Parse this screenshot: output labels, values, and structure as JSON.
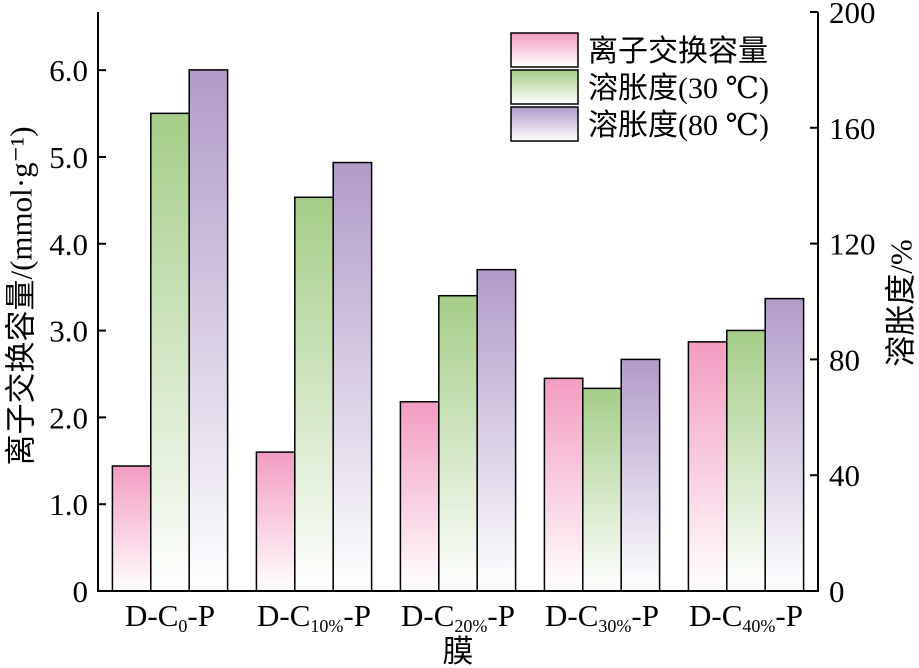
{
  "chart_data": {
    "type": "bar",
    "xlabel": "膜",
    "ylabel_left": "离子交换容量/(mmol·g⁻¹)",
    "ylabel_right": "溶胀度/%",
    "categories": [
      "D-C0-P",
      "D-C10%-P",
      "D-C20%-P",
      "D-C30%-P",
      "D-C40%-P"
    ],
    "ylim_left": [
      0,
      6.67
    ],
    "ylim_right": [
      0,
      200
    ],
    "yticks_left": [
      "0",
      "1.0",
      "2.0",
      "3.0",
      "4.0",
      "5.0",
      "6.0"
    ],
    "yticks_right": [
      "0",
      "40",
      "80",
      "120",
      "160",
      "200"
    ],
    "grid": false,
    "legend_position": "top-right",
    "series": [
      {
        "name": "离子交换容量",
        "axis": "left",
        "values": [
          1.44,
          1.6,
          2.18,
          2.45,
          2.87
        ],
        "color": "#f39cc2"
      },
      {
        "name": "溶胀度(30 ℃)",
        "axis": "right",
        "values": [
          165,
          136,
          102,
          70,
          90
        ],
        "color": "#a5cd88"
      },
      {
        "name": "溶胀度(80 ℃)",
        "axis": "right",
        "values": [
          180,
          148,
          111,
          80,
          101
        ],
        "color": "#b19bc9"
      }
    ]
  }
}
